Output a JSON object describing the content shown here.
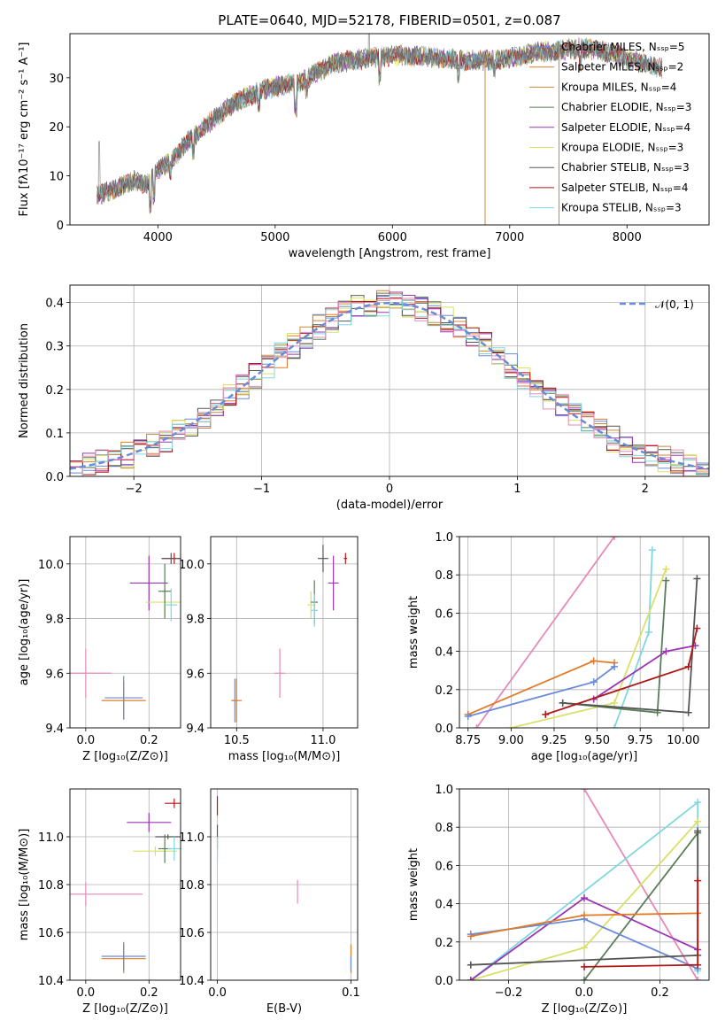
{
  "figure": {
    "title": "PLATE=0640, MJD=52178, FIBERID=0501, z=0.087"
  },
  "colors": {
    "Chabrier MILES": "#6a8bd8",
    "Salpeter MILES": "#e07b2a",
    "Kroupa MILES": "#c98a35",
    "Chabrier ELODIE": "#5a7d5a",
    "Salpeter ELODIE": "#9b35b5",
    "Kroupa ELODIE": "#d9e06a",
    "Chabrier STELIB": "#555555",
    "Salpeter STELIB": "#b01818",
    "Kroupa STELIB": "#7fd7e0",
    "pink": "#e68ab8",
    "gray": "#999999"
  },
  "chart_data": [
    {
      "id": "spectrum",
      "type": "line",
      "title": "PLATE=0640, MJD=52178, FIBERID=0501, z=0.087",
      "xlabel": "wavelength [Angstrom, rest frame]",
      "ylabel": "Flux [fλ10⁻¹⁷ erg cm⁻² s⁻¹ A⁻¹]",
      "xlim": [
        3250,
        8700
      ],
      "ylim": [
        0,
        39
      ],
      "xticks": [
        "4000",
        "5000",
        "6000",
        "7000",
        "8000"
      ],
      "yticks": [
        "0",
        "10",
        "20",
        "30"
      ],
      "grid": false,
      "legend_position": "top-right",
      "continuum_x": [
        3480,
        3600,
        3700,
        3800,
        3900,
        4000,
        4150,
        4300,
        4450,
        4600,
        4750,
        4900,
        5050,
        5200,
        5350,
        5500,
        5650,
        5800,
        6000,
        6200,
        6400,
        6600,
        6800,
        7000,
        7200,
        7400,
        7600,
        7800,
        8000,
        8200,
        8300
      ],
      "continuum_y": [
        6,
        7,
        8,
        9,
        8.5,
        11,
        14,
        18,
        21,
        24,
        26,
        27.5,
        28.5,
        29,
        31,
        33,
        33.5,
        34,
        34.5,
        34.5,
        34,
        33.5,
        33.5,
        34,
        35,
        35.5,
        36,
        35.5,
        34,
        32.5,
        32
      ],
      "series": [
        {
          "name": "Chabrier MILES, Nₛₛₚ=5"
        },
        {
          "name": "Salpeter MILES, Nₛₛₚ=2"
        },
        {
          "name": "Kroupa MILES, Nₛₛₚ=4"
        },
        {
          "name": "Chabrier ELODIE, Nₛₛₚ=3"
        },
        {
          "name": "Salpeter ELODIE, Nₛₛₚ=4"
        },
        {
          "name": "Kroupa ELODIE, Nₛₛₚ=3"
        },
        {
          "name": "Chabrier STELIB, Nₛₛₚ=3"
        },
        {
          "name": "Salpeter STELIB, Nₛₛₚ=4"
        },
        {
          "name": "Kroupa STELIB, Nₛₛₚ=3"
        }
      ]
    },
    {
      "id": "residuals",
      "type": "line",
      "xlabel": "(data-model)/error",
      "ylabel": "Normed distribution",
      "xlim": [
        -2.5,
        2.5
      ],
      "ylim": [
        0,
        0.44
      ],
      "xticks": [
        "−2",
        "−1",
        "0",
        "1",
        "2"
      ],
      "yticks": [
        "0.0",
        "0.1",
        "0.2",
        "0.3",
        "0.4"
      ],
      "grid": true,
      "legend_position": "top-right",
      "legend": "𝒩(0, 1)",
      "gaussian": {
        "mean": 0,
        "sigma": 1
      }
    },
    {
      "id": "age-vs-Z",
      "type": "scatter",
      "xlabel": "Z [log₁₀(Z/Z⊙)]",
      "ylabel": "age  [log₁₀(age/yr)]",
      "xlim": [
        -0.05,
        0.3
      ],
      "ylim": [
        9.4,
        10.1
      ],
      "xticks": [
        "0.0",
        "0.2"
      ],
      "yticks": [
        "9.4",
        "9.6",
        "9.8",
        "10.0"
      ],
      "grid": true,
      "points": [
        {
          "x": 0.0,
          "y": 9.6,
          "xerr": 0.08,
          "yerr": 0.09,
          "color": "pink"
        },
        {
          "x": 0.12,
          "y": 9.5,
          "xerr": 0.07,
          "yerr": 0.07,
          "color": "Salpeter MILES"
        },
        {
          "x": 0.12,
          "y": 9.51,
          "xerr": 0.06,
          "yerr": 0.08,
          "color": "Chabrier MILES"
        },
        {
          "x": 0.2,
          "y": 9.93,
          "xerr": 0.06,
          "yerr": 0.1,
          "color": "Salpeter ELODIE"
        },
        {
          "x": 0.25,
          "y": 9.86,
          "xerr": 0.06,
          "yerr": 0.05,
          "color": "Kroupa ELODIE"
        },
        {
          "x": 0.25,
          "y": 9.9,
          "xerr": 0.02,
          "yerr": 0.1,
          "color": "Chabrier ELODIE"
        },
        {
          "x": 0.28,
          "y": 10.02,
          "xerr": 0.04,
          "yerr": 0.02,
          "color": "Salpeter STELIB"
        },
        {
          "x": 0.27,
          "y": 10.02,
          "xerr": 0.03,
          "yerr": 0.02,
          "color": "Chabrier STELIB"
        },
        {
          "x": 0.27,
          "y": 9.85,
          "xerr": 0.02,
          "yerr": 0.06,
          "color": "Kroupa STELIB"
        }
      ]
    },
    {
      "id": "age-vs-mass",
      "type": "scatter",
      "xlabel": "mass [log₁₀(M/M⊙)]",
      "ylabel": "",
      "xlim": [
        10.35,
        11.2
      ],
      "ylim": [
        9.4,
        10.1
      ],
      "xticks": [
        "10.5",
        "11.0"
      ],
      "yticks": [
        "9.4",
        "9.6",
        "9.8",
        "10.0"
      ],
      "grid": true,
      "points": [
        {
          "x": 10.49,
          "y": 9.5,
          "xerr": 0.02,
          "yerr": 0.08,
          "color": "Chabrier MILES"
        },
        {
          "x": 10.5,
          "y": 9.5,
          "xerr": 0.03,
          "yerr": 0.08,
          "color": "Salpeter MILES"
        },
        {
          "x": 10.75,
          "y": 9.6,
          "xerr": 0.03,
          "yerr": 0.09,
          "color": "pink"
        },
        {
          "x": 10.93,
          "y": 9.85,
          "xerr": 0.02,
          "yerr": 0.05,
          "color": "Kroupa ELODIE"
        },
        {
          "x": 10.95,
          "y": 9.86,
          "xerr": 0.02,
          "yerr": 0.08,
          "color": "Chabrier ELODIE"
        },
        {
          "x": 10.95,
          "y": 9.83,
          "xerr": 0.02,
          "yerr": 0.06,
          "color": "Kroupa STELIB"
        },
        {
          "x": 11.06,
          "y": 9.93,
          "xerr": 0.03,
          "yerr": 0.1,
          "color": "Salpeter ELODIE"
        },
        {
          "x": 11.0,
          "y": 10.02,
          "xerr": 0.03,
          "yerr": 0.05,
          "color": "Chabrier STELIB"
        },
        {
          "x": 11.13,
          "y": 10.02,
          "xerr": 0.01,
          "yerr": 0.02,
          "color": "Salpeter STELIB"
        }
      ]
    },
    {
      "id": "weight-vs-age",
      "type": "line",
      "xlabel": "age  [log₁₀(age/yr)]",
      "ylabel": "mass weight",
      "xlim": [
        8.7,
        10.15
      ],
      "ylim": [
        0,
        1
      ],
      "xticks": [
        "8.75",
        "9.00",
        "9.25",
        "9.50",
        "9.75",
        "10.00"
      ],
      "yticks": [
        "0.0",
        "0.2",
        "0.4",
        "0.6",
        "0.8",
        "1.0"
      ],
      "grid": true,
      "series": [
        {
          "color": "pink",
          "x": [
            8.8,
            9.6
          ],
          "y": [
            0,
            1.0
          ]
        },
        {
          "color": "Salpeter MILES",
          "x": [
            8.75,
            9.48,
            9.6
          ],
          "y": [
            0.07,
            0.35,
            0.34
          ]
        },
        {
          "color": "Chabrier MILES",
          "x": [
            8.75,
            9.48,
            9.6
          ],
          "y": [
            0.06,
            0.24,
            0.32
          ]
        },
        {
          "color": "Kroupa STELIB",
          "x": [
            9.6,
            9.8,
            9.82
          ],
          "y": [
            0.0,
            0.5,
            0.93
          ]
        },
        {
          "color": "Kroupa ELODIE",
          "x": [
            9.0,
            9.6,
            9.9
          ],
          "y": [
            0.0,
            0.13,
            0.83
          ]
        },
        {
          "color": "Chabrier ELODIE",
          "x": [
            9.3,
            9.85,
            9.9
          ],
          "y": [
            0.13,
            0.08,
            0.77
          ]
        },
        {
          "color": "Salpeter ELODIE",
          "x": [
            9.48,
            9.9,
            10.07
          ],
          "y": [
            0.15,
            0.4,
            0.43
          ]
        },
        {
          "color": "Chabrier STELIB",
          "x": [
            9.3,
            10.03,
            10.08
          ],
          "y": [
            0.13,
            0.08,
            0.78
          ]
        },
        {
          "color": "Salpeter STELIB",
          "x": [
            9.2,
            10.03,
            10.08
          ],
          "y": [
            0.07,
            0.32,
            0.52
          ]
        }
      ]
    },
    {
      "id": "mass-vs-Z",
      "type": "scatter",
      "xlabel": "Z [log₁₀(Z/Z⊙)]",
      "ylabel": "mass [log₁₀(M/M⊙)]",
      "xlim": [
        -0.05,
        0.3
      ],
      "ylim": [
        10.4,
        11.2
      ],
      "xticks": [
        "0.0",
        "0.2"
      ],
      "yticks": [
        "10.4",
        "10.6",
        "10.8",
        "11.0"
      ],
      "grid": true,
      "points": [
        {
          "x": 0.0,
          "y": 10.76,
          "xerr": 0.18,
          "yerr": 0.05,
          "color": "pink"
        },
        {
          "x": 0.12,
          "y": 10.49,
          "xerr": 0.07,
          "yerr": 0.06,
          "color": "Salpeter MILES"
        },
        {
          "x": 0.12,
          "y": 10.5,
          "xerr": 0.07,
          "yerr": 0.06,
          "color": "Chabrier MILES"
        },
        {
          "x": 0.2,
          "y": 11.06,
          "xerr": 0.07,
          "yerr": 0.04,
          "color": "Salpeter ELODIE"
        },
        {
          "x": 0.22,
          "y": 10.94,
          "xerr": 0.07,
          "yerr": 0.02,
          "color": "Kroupa ELODIE"
        },
        {
          "x": 0.25,
          "y": 10.95,
          "xerr": 0.02,
          "yerr": 0.06,
          "color": "Chabrier ELODIE"
        },
        {
          "x": 0.28,
          "y": 11.14,
          "xerr": 0.03,
          "yerr": 0.02,
          "color": "Salpeter STELIB"
        },
        {
          "x": 0.26,
          "y": 11.0,
          "xerr": 0.04,
          "yerr": 0.01,
          "color": "Chabrier STELIB"
        },
        {
          "x": 0.28,
          "y": 10.95,
          "xerr": 0.02,
          "yerr": 0.05,
          "color": "Kroupa STELIB"
        }
      ]
    },
    {
      "id": "mass-vs-EBV",
      "type": "scatter",
      "xlabel": "E(B-V)",
      "ylabel": "",
      "xlim": [
        -0.005,
        0.105
      ],
      "ylim": [
        10.4,
        11.2
      ],
      "xticks": [
        "0.0",
        "0.1"
      ],
      "yticks": [
        "10.4",
        "10.6",
        "10.8",
        "11.0"
      ],
      "grid": true,
      "points": [
        {
          "x": 0.0,
          "y": 11.13,
          "xerr": 0,
          "yerr": 0.04,
          "color": "Salpeter STELIB"
        },
        {
          "x": 0.0,
          "y": 11.0,
          "xerr": 0,
          "yerr": 0.05,
          "color": "Chabrier STELIB"
        },
        {
          "x": 0.0,
          "y": 10.95,
          "xerr": 0,
          "yerr": 0.05,
          "color": "Kroupa STELIB"
        },
        {
          "x": 0.06,
          "y": 10.77,
          "xerr": 0,
          "yerr": 0.05,
          "color": "pink"
        },
        {
          "x": 0.1,
          "y": 10.49,
          "xerr": 0,
          "yerr": 0.06,
          "color": "Salpeter MILES"
        },
        {
          "x": 0.1,
          "y": 10.47,
          "xerr": 0,
          "yerr": 0.03,
          "color": "Chabrier MILES"
        }
      ]
    },
    {
      "id": "weight-vs-Z",
      "type": "line",
      "xlabel": "Z [log₁₀(Z/Z⊙)]",
      "ylabel": "mass weight",
      "xlim": [
        -0.33,
        0.33
      ],
      "ylim": [
        0,
        1
      ],
      "xticks": [
        "−0.2",
        "0.0",
        "0.2"
      ],
      "yticks": [
        "0.0",
        "0.2",
        "0.4",
        "0.6",
        "0.8",
        "1.0"
      ],
      "grid": true,
      "series": [
        {
          "color": "pink",
          "x": [
            0.0,
            0.3
          ],
          "y": [
            1.0,
            0.0
          ]
        },
        {
          "color": "Kroupa STELIB",
          "x": [
            -0.3,
            0.3,
            0.3
          ],
          "y": [
            0.0,
            0.93,
            0.05
          ]
        },
        {
          "color": "Kroupa ELODIE",
          "x": [
            -0.3,
            0.0,
            0.3
          ],
          "y": [
            0.0,
            0.17,
            0.83
          ]
        },
        {
          "color": "Chabrier ELODIE",
          "x": [
            0.0,
            0.3
          ],
          "y": [
            0.0,
            0.77
          ]
        },
        {
          "color": "Salpeter ELODIE",
          "x": [
            -0.3,
            0.0,
            0.3
          ],
          "y": [
            0.0,
            0.43,
            0.16
          ]
        },
        {
          "color": "Chabrier MILES",
          "x": [
            -0.3,
            0.0,
            0.3
          ],
          "y": [
            0.24,
            0.32,
            0.06
          ]
        },
        {
          "color": "Salpeter MILES",
          "x": [
            -0.3,
            0.0,
            0.3
          ],
          "y": [
            0.23,
            0.34,
            0.35
          ]
        },
        {
          "color": "Chabrier STELIB",
          "x": [
            -0.3,
            0.3,
            0.3
          ],
          "y": [
            0.08,
            0.13,
            0.78
          ]
        },
        {
          "color": "Salpeter STELIB",
          "x": [
            0.0,
            0.3,
            0.3
          ],
          "y": [
            0.07,
            0.08,
            0.52
          ]
        }
      ]
    }
  ]
}
